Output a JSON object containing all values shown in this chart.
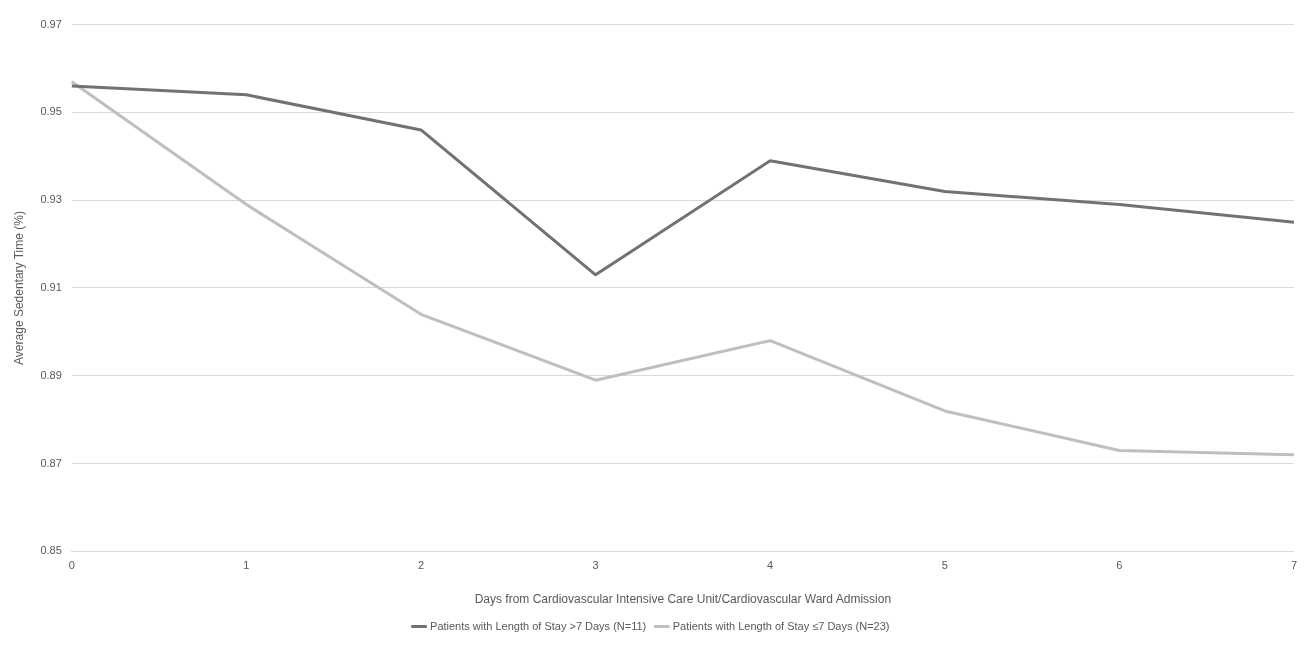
{
  "chart_data": {
    "type": "line",
    "xlabel": "Days from Cardiovascular Intensive Care Unit/Cardiovascular Ward Admission",
    "ylabel": "Average Sedentary Time (%)",
    "categories": [
      "0",
      "1",
      "2",
      "3",
      "4",
      "5",
      "6",
      "7"
    ],
    "series": [
      {
        "name": "Patients with Length of Stay >7 Days (N=11)",
        "color": "#767171",
        "values": [
          0.956,
          0.954,
          0.946,
          0.913,
          0.939,
          0.932,
          0.929,
          0.925
        ]
      },
      {
        "name": "Patients with Length of Stay ≤7 Days (N=23)",
        "color": "#bfbfbf",
        "values": [
          0.957,
          0.929,
          0.904,
          0.889,
          0.898,
          0.882,
          0.873,
          0.872
        ]
      }
    ],
    "ylim": [
      0.85,
      0.97
    ],
    "yticks": [
      0.85,
      0.87,
      0.89,
      0.91,
      0.93,
      0.95,
      0.97
    ],
    "grid": "y",
    "legend": "bottom",
    "marker": "none",
    "line_style": "solid"
  }
}
